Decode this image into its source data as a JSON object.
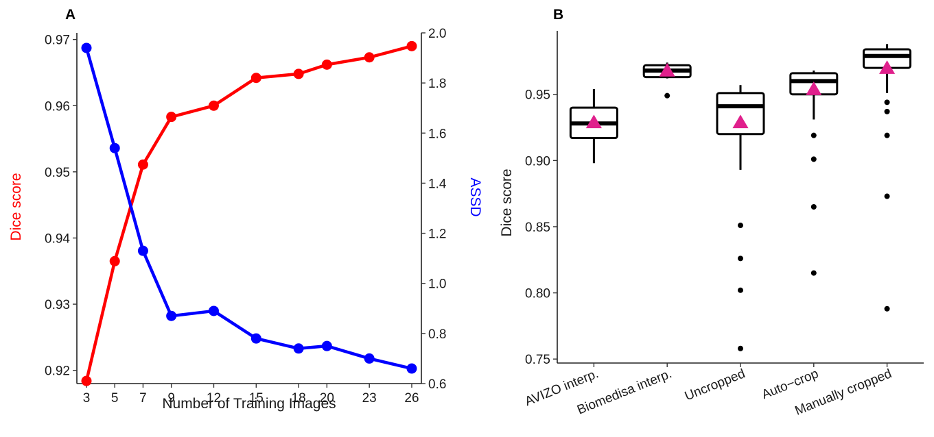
{
  "chart_data": [
    {
      "panel": "A",
      "type": "line",
      "xlabel": "Number of Training Images",
      "x": [
        3,
        5,
        7,
        9,
        12,
        15,
        18,
        20,
        23,
        26
      ],
      "xticks": [
        "3",
        "5",
        "7",
        "9",
        "12",
        "15",
        "18",
        "20",
        "23",
        "26"
      ],
      "ylabel": "Dice score",
      "ylabel_color": "#ff0000",
      "ylim": [
        0.918,
        0.971
      ],
      "yticks": [
        "0.92",
        "0.93",
        "0.94",
        "0.95",
        "0.96",
        "0.97"
      ],
      "y2label": "ASSD",
      "y2label_color": "#0000ff",
      "y2lim": [
        0.6,
        2.0
      ],
      "y2ticks": [
        "0.6",
        "0.8",
        "1.0",
        "1.2",
        "1.4",
        "1.6",
        "1.8",
        "2.0"
      ],
      "series": [
        {
          "axis": "left",
          "color": "#ff0000",
          "values": [
            0.9184,
            0.9365,
            0.9511,
            0.9583,
            0.96,
            0.9642,
            0.9648,
            0.9662,
            0.9673,
            0.969
          ]
        },
        {
          "axis": "right",
          "color": "#0000ff",
          "values": [
            1.94,
            1.54,
            1.13,
            0.87,
            0.89,
            0.78,
            0.74,
            0.75,
            0.7,
            0.66
          ]
        }
      ],
      "grid": false
    },
    {
      "panel": "B",
      "type": "box",
      "ylabel": "Dice score",
      "ylim": [
        0.747,
        0.998
      ],
      "yticks": [
        "0.75",
        "0.80",
        "0.85",
        "0.90",
        "0.95"
      ],
      "categories": [
        "AVIZO interp.",
        "Biomedisa interp.",
        "Uncropped",
        "Auto−crop",
        "Manually cropped"
      ],
      "mean_marker_color": "#e0208c",
      "boxes": [
        {
          "whisker_low": 0.898,
          "q1": 0.917,
          "median": 0.928,
          "q3": 0.94,
          "whisker_high": 0.954,
          "mean": 0.929,
          "outliers": []
        },
        {
          "whisker_low": 0.962,
          "q1": 0.963,
          "median": 0.968,
          "q3": 0.972,
          "whisker_high": 0.974,
          "mean": 0.968,
          "outliers": [
            0.949
          ]
        },
        {
          "whisker_low": 0.893,
          "q1": 0.92,
          "median": 0.941,
          "q3": 0.951,
          "whisker_high": 0.957,
          "mean": 0.929,
          "outliers": [
            0.851,
            0.826,
            0.802,
            0.758
          ]
        },
        {
          "whisker_low": 0.931,
          "q1": 0.95,
          "median": 0.96,
          "q3": 0.966,
          "whisker_high": 0.968,
          "mean": 0.954,
          "outliers": [
            0.919,
            0.901,
            0.865,
            0.815
          ]
        },
        {
          "whisker_low": 0.951,
          "q1": 0.97,
          "median": 0.979,
          "q3": 0.984,
          "whisker_high": 0.988,
          "mean": 0.97,
          "outliers": [
            0.944,
            0.937,
            0.919,
            0.873,
            0.788
          ]
        }
      ],
      "grid": false
    }
  ]
}
